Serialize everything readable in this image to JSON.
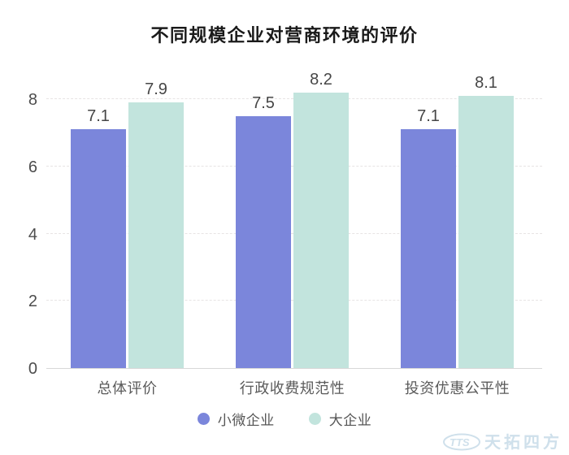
{
  "chart_data": {
    "type": "bar",
    "title": "不同规模企业对营商环境的评价",
    "categories": [
      "总体评价",
      "行政收费规范性",
      "投资优惠公平性"
    ],
    "series": [
      {
        "name": "小微企业",
        "color": "#7b86db",
        "values": [
          7.1,
          7.5,
          7.1
        ]
      },
      {
        "name": "大企业",
        "color": "#c2e4dd",
        "values": [
          7.9,
          8.2,
          8.1
        ]
      }
    ],
    "xlabel": "",
    "ylabel": "",
    "ylim": [
      0,
      8
    ],
    "yticks": [
      0,
      2,
      4,
      6,
      8
    ],
    "grid": "horizontal dashed",
    "legend_position": "bottom"
  },
  "watermark": {
    "logo_text": "TTS",
    "brand_text": "天拓四方",
    "color": "#cfe0eb"
  },
  "colors": {
    "background": "#ffffff",
    "title_text": "#1a1a1a",
    "axis_text": "#4d4d4d",
    "category_text": "#5a5a5a",
    "legend_text": "#555555",
    "gridline": "#e7e4e4",
    "baseline": "#d8d8d8",
    "series1": "#7b86db",
    "series2": "#c2e4dd",
    "watermark": "#cfe0eb"
  }
}
